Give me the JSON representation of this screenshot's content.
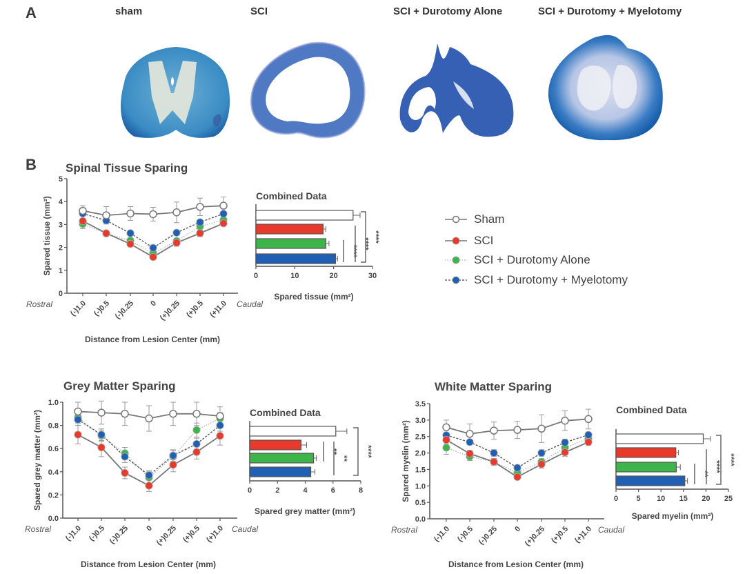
{
  "panel_a": {
    "label": "A",
    "images": [
      {
        "title": "sham",
        "description": "spinal cord cross-section, intact butterfly grey matter, blue myelin stain"
      },
      {
        "title": "SCI",
        "description": "ring-shaped cross-section with large central cavity"
      },
      {
        "title": "SCI + Durotomy Alone",
        "description": "irregular cross-section with partial cavity"
      },
      {
        "title": "SCI + Durotomy + Myelotomy",
        "description": "rounded cross-section with pale central lesion"
      }
    ]
  },
  "panel_b": {
    "label": "B"
  },
  "colors": {
    "sham": "#ffffff",
    "sci": "#e8392b",
    "durotomy": "#3db54a",
    "myelotomy": "#1f5fb4",
    "axis": "#555555",
    "line": "#777777"
  },
  "legend": [
    {
      "key": "sham",
      "label": "Sham",
      "style": "open-circle-solid"
    },
    {
      "key": "sci",
      "label": "SCI",
      "style": "filled-solid"
    },
    {
      "key": "durotomy",
      "label": "SCI + Durotomy Alone",
      "style": "filled-dotted"
    },
    {
      "key": "myelotomy",
      "label": "SCI + Durotomy + Myelotomy",
      "style": "filled-dashed"
    }
  ],
  "chart_data": [
    {
      "id": "spinal-line",
      "type": "line",
      "title": "Spinal Tissue Sparing",
      "xlabel": "Distance from Lesion Center (mm)",
      "ylabel": "Spared tissue (mm²)",
      "x_left_label": "Rostral",
      "x_right_label": "Caudal",
      "categories": [
        "(-)1.0",
        "(-)0.5",
        "(-)0.25",
        "0",
        "(+)0.25",
        "(+)0.5",
        "(+)1.0"
      ],
      "ylim": [
        0,
        5
      ],
      "yticks": [
        "0",
        "1",
        "2",
        "3",
        "4",
        "5"
      ],
      "series": [
        {
          "name": "Sham",
          "key": "sham",
          "values": [
            3.6,
            3.4,
            3.48,
            3.45,
            3.53,
            3.77,
            3.82
          ],
          "err": [
            0.22,
            0.38,
            0.3,
            0.3,
            0.45,
            0.38,
            0.38
          ]
        },
        {
          "name": "SCI",
          "key": "sci",
          "values": [
            3.15,
            2.62,
            2.15,
            1.58,
            2.2,
            2.62,
            3.05
          ],
          "err": [
            0.12,
            0.1,
            0.1,
            0.1,
            0.15,
            0.15,
            0.1
          ]
        },
        {
          "name": "SCI + Durotomy Alone",
          "key": "durotomy",
          "values": [
            3.02,
            2.6,
            2.3,
            1.75,
            2.28,
            2.92,
            3.2
          ],
          "err": [
            0.2,
            0.1,
            0.1,
            0.1,
            0.1,
            0.1,
            0.1
          ]
        },
        {
          "name": "SCI + Durotomy + Myelotomy",
          "key": "myelotomy",
          "values": [
            3.48,
            3.17,
            2.62,
            1.98,
            2.64,
            3.1,
            3.47
          ],
          "err": [
            0.1,
            0.1,
            0.08,
            0.08,
            0.08,
            0.08,
            0.08
          ]
        }
      ]
    },
    {
      "id": "spinal-bar",
      "type": "bar",
      "title": "Combined Data",
      "xlabel": "Spared tissue (mm²)",
      "orientation": "horizontal",
      "categories": [
        "Sham",
        "SCI",
        "SCI + Durotomy Alone",
        "SCI + Durotomy + Myelotomy"
      ],
      "keys": [
        "sham",
        "sci",
        "durotomy",
        "myelotomy"
      ],
      "values": [
        25,
        17.3,
        18,
        20.5
      ],
      "err": [
        1.8,
        0.7,
        0.8,
        0.5
      ],
      "xlim": [
        0,
        30
      ],
      "xticks": [
        "0",
        "10",
        "20",
        "30"
      ],
      "significance": [
        {
          "from": 2,
          "to": 3,
          "label": "****",
          "bracket": false
        },
        {
          "from": 1,
          "to": 3,
          "label": "****",
          "bracket": false
        },
        {
          "from": 0,
          "to": 3,
          "label": "****",
          "bracket": true
        }
      ]
    },
    {
      "id": "grey-line",
      "type": "line",
      "title": "Grey Matter Sparing",
      "xlabel": "Distance from Lesion Center (mm)",
      "ylabel": "Spared grey matter (mm²)",
      "x_left_label": "Rostral",
      "x_right_label": "Caudal",
      "categories": [
        "(-)1.0",
        "(-)0.5",
        "(-)0.25",
        "0",
        "(+)0.25",
        "(+)0.5",
        "(+)1.0"
      ],
      "ylim": [
        0,
        1.0
      ],
      "yticks": [
        "0.0",
        "0.2",
        "0.4",
        "0.6",
        "0.8",
        "1.0"
      ],
      "series": [
        {
          "name": "Sham",
          "key": "sham",
          "values": [
            0.92,
            0.91,
            0.9,
            0.86,
            0.9,
            0.9,
            0.88
          ],
          "err": [
            0.08,
            0.1,
            0.1,
            0.11,
            0.1,
            0.1,
            0.08
          ]
        },
        {
          "name": "SCI",
          "key": "sci",
          "values": [
            0.72,
            0.61,
            0.39,
            0.28,
            0.46,
            0.57,
            0.71
          ],
          "err": [
            0.08,
            0.08,
            0.05,
            0.05,
            0.06,
            0.06,
            0.08
          ]
        },
        {
          "name": "SCI + Durotomy Alone",
          "key": "durotomy",
          "values": [
            0.87,
            0.71,
            0.56,
            0.35,
            0.53,
            0.76,
            0.86
          ],
          "err": [
            0.05,
            0.05,
            0.05,
            0.05,
            0.05,
            0.06,
            0.05
          ]
        },
        {
          "name": "SCI + Durotomy + Myelotomy",
          "key": "myelotomy",
          "values": [
            0.85,
            0.72,
            0.53,
            0.37,
            0.54,
            0.64,
            0.8
          ],
          "err": [
            0.05,
            0.05,
            0.05,
            0.04,
            0.05,
            0.05,
            0.05
          ]
        }
      ]
    },
    {
      "id": "grey-bar",
      "type": "bar",
      "title": "Combined Data",
      "xlabel": "Spared grey matter (mm²)",
      "orientation": "horizontal",
      "categories": [
        "Sham",
        "SCI",
        "SCI + Durotomy Alone",
        "SCI + Durotomy + Myelotomy"
      ],
      "keys": [
        "sham",
        "sci",
        "durotomy",
        "myelotomy"
      ],
      "values": [
        6.2,
        3.7,
        4.6,
        4.4
      ],
      "err": [
        0.8,
        0.4,
        0.2,
        0.3
      ],
      "xlim": [
        0,
        8
      ],
      "xticks": [
        "0",
        "2",
        "4",
        "6",
        "8"
      ],
      "significance": [
        {
          "from": 1,
          "to": 2,
          "label": "**",
          "bracket": false
        },
        {
          "from": 1,
          "to": 3,
          "label": "**",
          "bracket": false
        },
        {
          "from": 0,
          "to": 3,
          "label": "****",
          "bracket": true
        }
      ]
    },
    {
      "id": "white-line",
      "type": "line",
      "title": "White Matter Sparing",
      "xlabel": "Distance from Lesion Center (mm)",
      "ylabel": "Spared myelin (mm²)",
      "x_left_label": "Rostral",
      "x_right_label": "Caudal",
      "categories": [
        "(-)1.0",
        "(-)0.5",
        "(-)0.25",
        "0",
        "(+)0.25",
        "(+)0.5",
        "(+)1.0"
      ],
      "ylim": [
        0,
        3.5
      ],
      "yticks": [
        "0.0",
        "0.5",
        "1.0",
        "1.5",
        "2.0",
        "2.5",
        "3.0",
        "3.5"
      ],
      "series": [
        {
          "name": "Sham",
          "key": "sham",
          "values": [
            2.78,
            2.58,
            2.68,
            2.7,
            2.74,
            2.98,
            3.03
          ],
          "err": [
            0.22,
            0.3,
            0.26,
            0.26,
            0.42,
            0.3,
            0.3
          ]
        },
        {
          "name": "SCI",
          "key": "sci",
          "values": [
            2.4,
            1.98,
            1.73,
            1.27,
            1.66,
            2.02,
            2.33
          ],
          "err": [
            0.12,
            0.1,
            0.1,
            0.08,
            0.12,
            0.12,
            0.1
          ]
        },
        {
          "name": "SCI + Durotomy Alone",
          "key": "durotomy",
          "values": [
            2.16,
            1.89,
            1.73,
            1.4,
            1.73,
            2.16,
            2.44
          ],
          "err": [
            0.2,
            0.12,
            0.1,
            0.08,
            0.1,
            0.1,
            0.1
          ]
        },
        {
          "name": "SCI + Durotomy + Myelotomy",
          "key": "myelotomy",
          "values": [
            2.54,
            2.33,
            2.0,
            1.55,
            2.0,
            2.32,
            2.55
          ],
          "err": [
            0.08,
            0.08,
            0.1,
            0.08,
            0.1,
            0.1,
            0.08
          ]
        }
      ]
    },
    {
      "id": "white-bar",
      "type": "bar",
      "title": "Combined Data",
      "xlabel": "Spared myelin (mm²)",
      "orientation": "horizontal",
      "categories": [
        "Sham",
        "SCI",
        "SCI + Durotomy Alone",
        "SCI + Durotomy + Myelotomy"
      ],
      "keys": [
        "sham",
        "sci",
        "durotomy",
        "myelotomy"
      ],
      "values": [
        19.4,
        13.3,
        13.4,
        15.3
      ],
      "err": [
        1.6,
        0.6,
        0.9,
        0.6
      ],
      "xlim": [
        0,
        25
      ],
      "xticks": [
        "0",
        "5",
        "10",
        "15",
        "20",
        "25"
      ],
      "significance": [
        {
          "from": 2,
          "to": 3,
          "label": "**",
          "bracket": false
        },
        {
          "from": 1,
          "to": 3,
          "label": "****",
          "bracket": false
        },
        {
          "from": 0,
          "to": 3,
          "label": "****",
          "bracket": true
        }
      ]
    }
  ]
}
